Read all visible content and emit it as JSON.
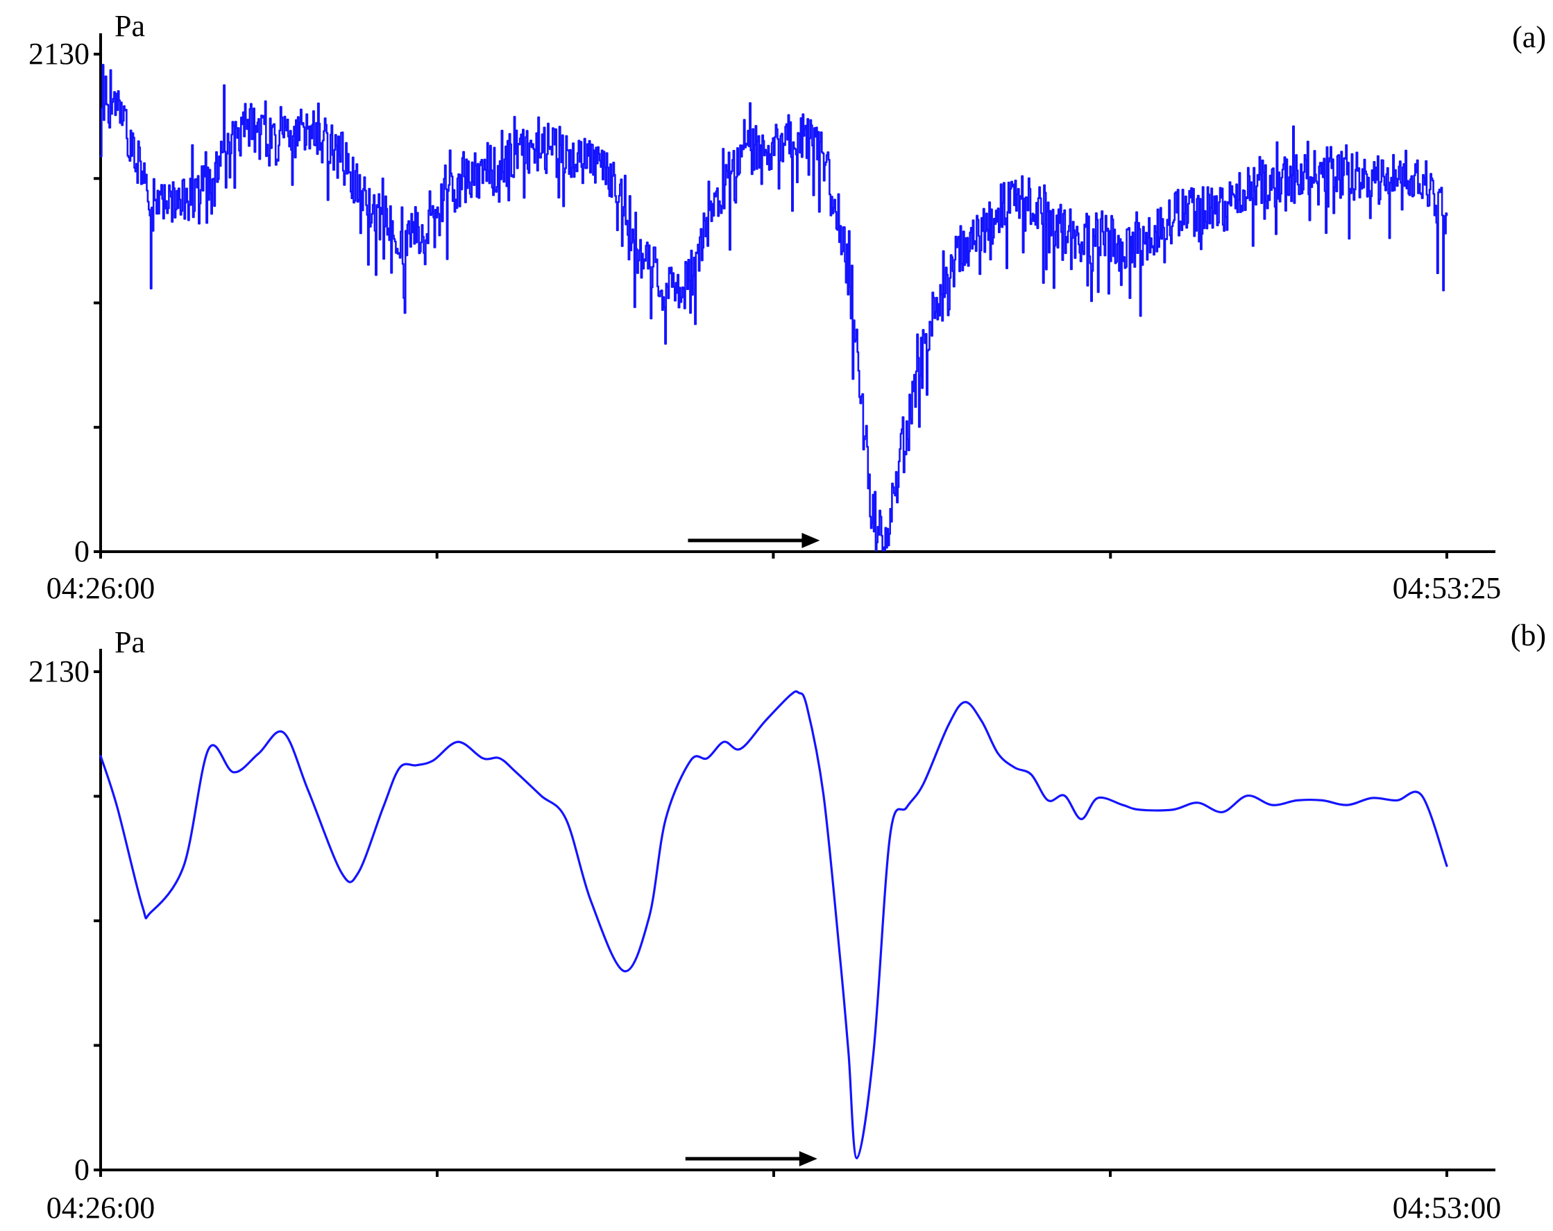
{
  "colors": {
    "series": "#1414ff",
    "axis": "#000000",
    "arrow": "#000000"
  },
  "chart_data": [
    {
      "type": "line",
      "panel_label": "(a)",
      "ylabel": "Pa",
      "ylim": [
        0,
        2130
      ],
      "yticks_labeled": [
        {
          "value": 0,
          "label": "0"
        },
        {
          "value": 2130,
          "label": "2130"
        }
      ],
      "yticks_minor": [
        532.5,
        1065,
        1597.5
      ],
      "xlim": [
        "04:26:00",
        "04:53:25"
      ],
      "xtick_labels": [
        {
          "time": "04:26:00",
          "label": "04:26:00"
        },
        {
          "time": "04:53:25",
          "label": "04:53:25"
        }
      ],
      "xticks_minor": [
        "04:32:51",
        "04:39:42",
        "04:46:34"
      ],
      "arrow_points_to": "04:41:17",
      "noisy": true,
      "series": [
        {
          "x": [
            "04:26:00",
            "04:26:20",
            "04:26:40",
            "04:27:00",
            "04:27:30",
            "04:28:00",
            "04:28:30",
            "04:29:00",
            "04:29:30",
            "04:30:00",
            "04:30:30",
            "04:31:00",
            "04:31:30",
            "04:32:00",
            "04:32:30",
            "04:33:00",
            "04:33:30",
            "04:34:00",
            "04:34:30",
            "04:35:00",
            "04:35:30",
            "04:36:00",
            "04:36:30",
            "04:37:00",
            "04:37:30",
            "04:38:00",
            "04:38:30",
            "04:39:00",
            "04:39:30",
            "04:40:00",
            "04:40:20",
            "04:40:40",
            "04:41:00",
            "04:41:20",
            "04:41:40",
            "04:42:00",
            "04:42:30",
            "04:43:00",
            "04:43:30",
            "04:44:00",
            "04:44:30",
            "04:45:00",
            "04:45:30",
            "04:46:00",
            "04:46:30",
            "04:47:00",
            "04:47:30",
            "04:48:00",
            "04:48:30",
            "04:49:00",
            "04:49:30",
            "04:50:00",
            "04:50:30",
            "04:51:00",
            "04:51:30",
            "04:52:00",
            "04:52:30",
            "04:53:00",
            "04:53:25"
          ],
          "y": [
            1950,
            1900,
            1720,
            1480,
            1500,
            1530,
            1750,
            1820,
            1750,
            1780,
            1820,
            1660,
            1450,
            1370,
            1380,
            1530,
            1610,
            1640,
            1700,
            1730,
            1700,
            1650,
            1590,
            1300,
            1120,
            1150,
            1490,
            1720,
            1730,
            1780,
            1770,
            1700,
            1460,
            1050,
            210,
            60,
            650,
            1050,
            1300,
            1380,
            1520,
            1500,
            1380,
            1350,
            1330,
            1290,
            1360,
            1460,
            1460,
            1490,
            1560,
            1590,
            1600,
            1630,
            1610,
            1600,
            1620,
            1580,
            1400
          ]
        }
      ]
    },
    {
      "type": "line",
      "panel_label": "(b)",
      "ylabel": "Pa",
      "ylim": [
        0,
        2130
      ],
      "yticks_labeled": [
        {
          "value": 0,
          "label": "0"
        },
        {
          "value": 2130,
          "label": "2130"
        }
      ],
      "yticks_minor": [
        532.5,
        1065,
        1597.5
      ],
      "xlim": [
        "04:26:00",
        "04:53:00"
      ],
      "xtick_labels": [
        {
          "time": "04:26:00",
          "label": "04:26:00"
        },
        {
          "time": "04:53:00",
          "label": "04:53:00"
        }
      ],
      "xticks_minor": [
        "04:32:45",
        "04:39:30",
        "04:46:15"
      ],
      "arrow_points_to": "04:41:00",
      "noisy": false,
      "series": [
        {
          "x": [
            "04:26:00",
            "04:26:20",
            "04:26:50",
            "04:27:00",
            "04:27:40",
            "04:28:10",
            "04:28:40",
            "04:29:10",
            "04:29:40",
            "04:30:10",
            "04:30:50",
            "04:31:10",
            "04:31:40",
            "04:32:00",
            "04:32:20",
            "04:32:40",
            "04:33:10",
            "04:33:40",
            "04:34:00",
            "04:34:20",
            "04:34:50",
            "04:35:20",
            "04:35:50",
            "04:36:30",
            "04:37:00",
            "04:37:20",
            "04:37:50",
            "04:38:10",
            "04:38:30",
            "04:38:50",
            "04:39:20",
            "04:39:50",
            "04:40:00",
            "04:40:10",
            "04:40:30",
            "04:40:50",
            "04:41:00",
            "04:41:10",
            "04:41:30",
            "04:41:50",
            "04:42:10",
            "04:42:30",
            "04:43:00",
            "04:43:20",
            "04:43:40",
            "04:44:00",
            "04:44:20",
            "04:44:40",
            "04:45:00",
            "04:45:20",
            "04:45:40",
            "04:46:00",
            "04:46:30",
            "04:46:50",
            "04:47:30",
            "04:48:00",
            "04:48:30",
            "04:49:00",
            "04:49:30",
            "04:50:00",
            "04:50:30",
            "04:51:00",
            "04:51:30",
            "04:52:00",
            "04:52:30",
            "04:53:00"
          ],
          "y": [
            1770,
            1550,
            1130,
            1100,
            1300,
            1800,
            1700,
            1780,
            1870,
            1620,
            1270,
            1270,
            1550,
            1720,
            1730,
            1750,
            1830,
            1760,
            1760,
            1700,
            1600,
            1500,
            1150,
            850,
            1080,
            1500,
            1750,
            1760,
            1830,
            1800,
            1920,
            2030,
            2040,
            1980,
            1600,
            900,
            500,
            50,
            500,
            1430,
            1550,
            1650,
            1900,
            2000,
            1920,
            1780,
            1720,
            1690,
            1580,
            1600,
            1500,
            1590,
            1560,
            1540,
            1540,
            1570,
            1530,
            1600,
            1560,
            1580,
            1580,
            1560,
            1590,
            1580,
            1600,
            1300
          ]
        }
      ]
    }
  ]
}
